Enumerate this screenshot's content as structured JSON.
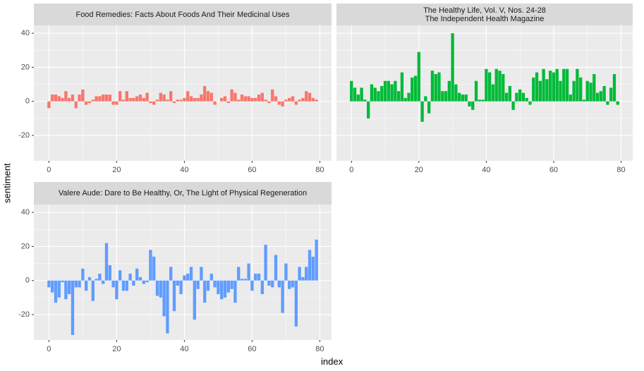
{
  "ylabel": "sentiment",
  "xlabel": "index",
  "chart_data": [
    {
      "type": "bar",
      "title": "Food Remedies: Facts About Foods And Their Medicinal Uses",
      "color": "#F8766D",
      "x": [
        0,
        1,
        2,
        3,
        4,
        5,
        6,
        7,
        8,
        9,
        10,
        11,
        12,
        13,
        14,
        15,
        16,
        17,
        18,
        19,
        20,
        21,
        22,
        23,
        24,
        25,
        26,
        27,
        28,
        29,
        30,
        31,
        32,
        33,
        34,
        35,
        36,
        37,
        38,
        39,
        40,
        41,
        42,
        43,
        44,
        45,
        46,
        47,
        48,
        49,
        50,
        51,
        52,
        53,
        54,
        55,
        56,
        57,
        58,
        59,
        60,
        61,
        62,
        63,
        64,
        65,
        66,
        67,
        68,
        69,
        70,
        71,
        72,
        73,
        74,
        75,
        76,
        77,
        78,
        79
      ],
      "values": [
        -4,
        4,
        4,
        3,
        2,
        6,
        2,
        4,
        -4,
        4,
        7,
        -2,
        -1,
        1,
        3,
        3,
        4,
        4,
        4,
        -2,
        -2,
        6,
        1,
        6,
        2,
        2,
        3,
        4,
        2,
        5,
        -1,
        -2,
        1,
        5,
        4,
        1,
        6,
        -1,
        1,
        1,
        2,
        6,
        3,
        2,
        2,
        4,
        9,
        6,
        5,
        -2,
        0,
        2,
        3,
        -1,
        7,
        5,
        1,
        4,
        3,
        3,
        2,
        2,
        4,
        5,
        1,
        -1,
        7,
        3,
        -2,
        -3,
        1,
        2,
        3,
        -2,
        1,
        2,
        6,
        5,
        2,
        1
      ],
      "xlim": [
        -4.45,
        83.45
      ],
      "ylim": [
        -34.9,
        44.6
      ],
      "xticks": [
        0,
        20,
        40,
        60,
        80
      ],
      "yticks": [
        -20,
        0,
        20,
        40
      ],
      "grid": true
    },
    {
      "type": "bar",
      "title": "The Healthy Life, Vol. V, Nos. 24-28\nThe Independent Health Magazine",
      "color": "#00BA38",
      "x": [
        0,
        1,
        2,
        3,
        4,
        5,
        6,
        7,
        8,
        9,
        10,
        11,
        12,
        13,
        14,
        15,
        16,
        17,
        18,
        19,
        20,
        21,
        22,
        23,
        24,
        25,
        26,
        27,
        28,
        29,
        30,
        31,
        32,
        33,
        34,
        35,
        36,
        37,
        38,
        39,
        40,
        41,
        42,
        43,
        44,
        45,
        46,
        47,
        48,
        49,
        50,
        51,
        52,
        53,
        54,
        55,
        56,
        57,
        58,
        59,
        60,
        61,
        62,
        63,
        64,
        65,
        66,
        67,
        68,
        69,
        70,
        71,
        72,
        73,
        74,
        75,
        76,
        77,
        78,
        79
      ],
      "values": [
        12,
        8,
        4,
        8,
        1,
        -10,
        10,
        8,
        6,
        9,
        12,
        12,
        10,
        12,
        6,
        17,
        2,
        5,
        14,
        15,
        29,
        -12,
        3,
        -7,
        18,
        16,
        17,
        6,
        6,
        12,
        40,
        10,
        5,
        4,
        4,
        -3,
        -5,
        12,
        1,
        1,
        19,
        17,
        10,
        19,
        18,
        16,
        5,
        9,
        -5,
        5,
        7,
        5,
        2,
        -2,
        14,
        17,
        12,
        19,
        13,
        18,
        17,
        19,
        12,
        19,
        19,
        4,
        12,
        19,
        14,
        1,
        12,
        11,
        16,
        5,
        6,
        9,
        -2,
        8,
        16,
        -2
      ],
      "xlim": [
        -4.45,
        83.45
      ],
      "ylim": [
        -34.9,
        44.6
      ],
      "xticks": [
        0,
        20,
        40,
        60,
        80
      ],
      "yticks": [
        -20,
        0,
        20,
        40
      ],
      "grid": true
    },
    {
      "type": "bar",
      "title": "Valere Aude: Dare to Be Healthy, Or, The Light of Physical Regeneration",
      "color": "#619CFF",
      "x": [
        0,
        1,
        2,
        3,
        4,
        5,
        6,
        7,
        8,
        9,
        10,
        11,
        12,
        13,
        14,
        15,
        16,
        17,
        18,
        19,
        20,
        21,
        22,
        23,
        24,
        25,
        26,
        27,
        28,
        29,
        30,
        31,
        32,
        33,
        34,
        35,
        36,
        37,
        38,
        39,
        40,
        41,
        42,
        43,
        44,
        45,
        46,
        47,
        48,
        49,
        50,
        51,
        52,
        53,
        54,
        55,
        56,
        57,
        58,
        59,
        60,
        61,
        62,
        63,
        64,
        65,
        66,
        67,
        68,
        69,
        70,
        71,
        72,
        73,
        74,
        75,
        76,
        77,
        78,
        79
      ],
      "values": [
        -4,
        -7,
        -13,
        -10,
        -1,
        -11,
        -8,
        -32,
        -4,
        -4,
        7,
        -6,
        2,
        -12,
        1,
        4,
        -2,
        22,
        9,
        -4,
        -11,
        6,
        -6,
        -6,
        4,
        -3,
        7,
        2,
        -2,
        -1,
        18,
        14,
        -9,
        -10,
        -21,
        -31,
        8,
        -18,
        -3,
        -8,
        3,
        4,
        8,
        -23,
        -5,
        8,
        -13,
        -6,
        4,
        -4,
        -8,
        -11,
        -10,
        -7,
        -5,
        -13,
        8,
        1,
        1,
        10,
        -6,
        4,
        4,
        -8,
        21,
        -3,
        -4,
        15,
        -4,
        -19,
        10,
        -5,
        -4,
        -27,
        8,
        2,
        8,
        18,
        14,
        24
      ],
      "xlim": [
        -4.45,
        83.45
      ],
      "ylim": [
        -34.9,
        44.6
      ],
      "xticks": [
        0,
        20,
        40,
        60,
        80
      ],
      "yticks": [
        -20,
        0,
        20,
        40
      ],
      "grid": true
    }
  ]
}
